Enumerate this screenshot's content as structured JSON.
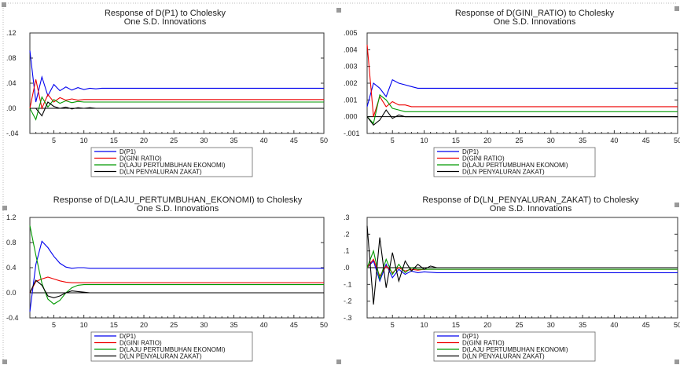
{
  "colors": {
    "p1": "#0000ee",
    "gini": "#ee0000",
    "laju": "#009900",
    "ln": "#000000",
    "frame": "#333333",
    "grid": "#cccccc",
    "handle": "#999999"
  },
  "chart_data": [
    {
      "type": "line",
      "title": "Response of D(P1) to Cholesky",
      "subtitle": "One S.D. Innovations",
      "ylim": [
        -0.04,
        0.12
      ],
      "yticks": [
        ".12",
        ".08",
        ".04",
        ".00",
        "-.04"
      ],
      "ytick_values": [
        0.12,
        0.08,
        0.04,
        0.0,
        -0.04
      ],
      "xlim": [
        1,
        50
      ],
      "xticks": [
        5,
        10,
        15,
        20,
        25,
        30,
        35,
        40,
        45,
        50
      ],
      "legend": [
        "D(P1)",
        "D(GINI RATIO)",
        "D(LAJU PERTUMBUHAN EKONOMI)",
        "D(LN PENYALURAN ZAKAT)"
      ],
      "series": [
        {
          "name": "D(P1)",
          "color_key": "p1",
          "x": [
            1,
            2,
            3,
            4,
            5,
            6,
            7,
            8,
            9,
            10,
            11,
            12,
            13,
            15,
            20,
            30,
            40,
            50
          ],
          "values": [
            0.092,
            0.01,
            0.05,
            0.02,
            0.038,
            0.028,
            0.034,
            0.029,
            0.033,
            0.03,
            0.032,
            0.031,
            0.032,
            0.032,
            0.032,
            0.032,
            0.032,
            0.032
          ]
        },
        {
          "name": "D(GINI RATIO)",
          "color_key": "gini",
          "x": [
            1,
            2,
            3,
            4,
            5,
            6,
            7,
            8,
            9,
            10,
            12,
            15,
            20,
            30,
            40,
            50
          ],
          "values": [
            0.0,
            0.046,
            0.0,
            0.022,
            0.01,
            0.017,
            0.013,
            0.015,
            0.013,
            0.014,
            0.014,
            0.014,
            0.014,
            0.014,
            0.014,
            0.014
          ]
        },
        {
          "name": "D(LAJU PERTUMBUHAN EKONOMI)",
          "color_key": "laju",
          "x": [
            1,
            2,
            3,
            4,
            5,
            6,
            7,
            8,
            9,
            10,
            12,
            15,
            20,
            30,
            40,
            50
          ],
          "values": [
            0.0,
            -0.018,
            0.018,
            0.002,
            0.014,
            0.008,
            0.012,
            0.009,
            0.011,
            0.01,
            0.01,
            0.01,
            0.01,
            0.01,
            0.01,
            0.01
          ]
        },
        {
          "name": "D(LN PENYALURAN ZAKAT)",
          "color_key": "ln",
          "x": [
            1,
            2,
            3,
            4,
            5,
            6,
            7,
            8,
            9,
            10,
            11,
            12,
            13,
            14,
            15,
            16
          ],
          "values": [
            0.0,
            0.0,
            -0.012,
            0.01,
            0.003,
            0.0,
            0.002,
            -0.001,
            0.001,
            0.0,
            0.001,
            0.0,
            0.0,
            0.0,
            0.0,
            0.0
          ]
        }
      ]
    },
    {
      "type": "line",
      "title": "Response of D(GINI_RATIO) to Cholesky",
      "subtitle": "One S.D. Innovations",
      "ylim": [
        -0.001,
        0.005
      ],
      "yticks": [
        ".005",
        ".004",
        ".003",
        ".002",
        ".001",
        ".000",
        "-.001"
      ],
      "ytick_values": [
        0.005,
        0.004,
        0.003,
        0.002,
        0.001,
        0.0,
        -0.001
      ],
      "xlim": [
        1,
        50
      ],
      "xticks": [
        5,
        10,
        15,
        20,
        25,
        30,
        35,
        40,
        45,
        "50"
      ],
      "legend": [
        "D(P1)",
        "D(GINI RATIO)",
        "D(LAJU PERTUMBUHAN EKONOMI)",
        "D(LN PENYALURAN ZAKAT)"
      ],
      "series": [
        {
          "name": "D(P1)",
          "color_key": "p1",
          "x": [
            1,
            2,
            3,
            4,
            5,
            6,
            7,
            8,
            9,
            10,
            12,
            15,
            20,
            30,
            40,
            50
          ],
          "values": [
            0.0006,
            0.002,
            0.0017,
            0.0012,
            0.0022,
            0.002,
            0.0019,
            0.0018,
            0.0017,
            0.0017,
            0.0017,
            0.0017,
            0.0017,
            0.0017,
            0.0017,
            0.0017
          ]
        },
        {
          "name": "D(GINI RATIO)",
          "color_key": "gini",
          "x": [
            1,
            2,
            3,
            4,
            5,
            6,
            7,
            8,
            9,
            10,
            12,
            15,
            20,
            30,
            40,
            50
          ],
          "values": [
            0.0043,
            0.0,
            0.0012,
            0.0006,
            0.0009,
            0.0007,
            0.0007,
            0.0006,
            0.0006,
            0.0006,
            0.0006,
            0.0006,
            0.0006,
            0.0006,
            0.0006,
            0.0006
          ]
        },
        {
          "name": "D(LAJU PERTUMBUHAN EKONOMI)",
          "color_key": "laju",
          "x": [
            1,
            2,
            3,
            4,
            5,
            6,
            7,
            8,
            9,
            10,
            12,
            15,
            20,
            30,
            40,
            50
          ],
          "values": [
            0.0,
            -0.0004,
            0.0013,
            0.001,
            0.0005,
            0.0004,
            0.0003,
            0.0003,
            0.0003,
            0.0003,
            0.0003,
            0.0003,
            0.0003,
            0.0003,
            0.0003,
            0.0003
          ]
        },
        {
          "name": "D(LN PENYALURAN ZAKAT)",
          "color_key": "ln",
          "x": [
            1,
            2,
            3,
            4,
            5,
            6,
            7,
            8,
            9,
            10,
            12,
            15,
            20,
            30,
            40,
            50
          ],
          "values": [
            0.0,
            -0.0005,
            -0.0002,
            0.0004,
            -0.0001,
            0.0001,
            0.0,
            0.0,
            0.0,
            0.0,
            0.0,
            0.0,
            0.0,
            0.0,
            0.0,
            0.0
          ]
        }
      ]
    },
    {
      "type": "line",
      "title": "Response of D(LAJU_PERTUMBUHAN_EKONOMI) to Cholesky",
      "subtitle": "One S.D. Innovations",
      "ylim": [
        -0.4,
        1.2
      ],
      "yticks": [
        "1.2",
        "0.8",
        "0.4",
        "0.0",
        "-0.4"
      ],
      "ytick_values": [
        1.2,
        0.8,
        0.4,
        0.0,
        -0.4
      ],
      "xlim": [
        1,
        50
      ],
      "xticks": [
        5,
        10,
        15,
        20,
        25,
        30,
        35,
        40,
        45,
        50
      ],
      "legend": [
        "D(P1)",
        "D(GINI RATIO)",
        "D(LAJU PERTUMBUHAN EKONOMI)",
        "D(LN PENYALURAN ZAKAT)"
      ],
      "series": [
        {
          "name": "D(P1)",
          "color_key": "p1",
          "x": [
            1,
            2,
            3,
            4,
            5,
            6,
            7,
            8,
            9,
            10,
            11,
            12,
            15,
            20,
            30,
            40,
            50
          ],
          "values": [
            -0.3,
            0.45,
            0.82,
            0.72,
            0.58,
            0.47,
            0.41,
            0.39,
            0.4,
            0.4,
            0.39,
            0.39,
            0.39,
            0.39,
            0.39,
            0.39,
            0.39
          ]
        },
        {
          "name": "D(GINI RATIO)",
          "color_key": "gini",
          "x": [
            1,
            2,
            3,
            4,
            5,
            6,
            7,
            8,
            9,
            10,
            12,
            15,
            20,
            30,
            40,
            50
          ],
          "values": [
            0.0,
            0.18,
            0.22,
            0.25,
            0.22,
            0.19,
            0.17,
            0.16,
            0.16,
            0.16,
            0.16,
            0.16,
            0.16,
            0.16,
            0.16,
            0.16
          ]
        },
        {
          "name": "D(LAJU PERTUMBUHAN EKONOMI)",
          "color_key": "laju",
          "x": [
            1,
            2,
            3,
            4,
            5,
            6,
            7,
            8,
            9,
            10,
            12,
            15,
            20,
            30,
            40,
            50
          ],
          "values": [
            1.07,
            0.6,
            0.15,
            -0.1,
            -0.18,
            -0.12,
            0.0,
            0.08,
            0.12,
            0.13,
            0.13,
            0.13,
            0.13,
            0.13,
            0.13,
            0.13
          ]
        },
        {
          "name": "D(LN PENYALURAN ZAKAT)",
          "color_key": "ln",
          "x": [
            1,
            2,
            3,
            4,
            5,
            6,
            7,
            8,
            9,
            10,
            11,
            12
          ],
          "values": [
            0.0,
            0.2,
            0.12,
            -0.05,
            -0.08,
            -0.05,
            0.0,
            0.03,
            0.02,
            0.01,
            0.0,
            0.0
          ]
        }
      ]
    },
    {
      "type": "line",
      "title": "Response of D(LN_PENYALURAN_ZAKAT) to Cholesky",
      "subtitle": "One S.D. Innovations",
      "ylim": [
        -0.3,
        0.3
      ],
      "yticks": [
        ".3",
        ".2",
        ".1",
        ".0",
        "-.1",
        "-.2",
        "-.3"
      ],
      "ytick_values": [
        0.3,
        0.2,
        0.1,
        0.0,
        -0.1,
        -0.2,
        -0.3
      ],
      "xlim": [
        1,
        50
      ],
      "xticks": [
        5,
        10,
        15,
        20,
        25,
        30,
        35,
        40,
        45,
        "50"
      ],
      "legend": [
        "D(P1)",
        "D(GINI RATIO)",
        "D(LAJU PERTUMBUHAN EKONOMI)",
        "D(LN PENYALURAN ZAKAT)"
      ],
      "series": [
        {
          "name": "D(P1)",
          "color_key": "p1",
          "x": [
            1,
            2,
            3,
            4,
            5,
            6,
            7,
            8,
            9,
            10,
            12,
            15,
            20,
            30,
            40,
            50
          ],
          "values": [
            0.0,
            0.04,
            -0.08,
            0.02,
            -0.06,
            -0.01,
            -0.04,
            -0.02,
            -0.03,
            -0.025,
            -0.03,
            -0.03,
            -0.03,
            -0.03,
            -0.03,
            -0.03
          ]
        },
        {
          "name": "D(GINI RATIO)",
          "color_key": "gini",
          "x": [
            1,
            2,
            3,
            4,
            5,
            6,
            7,
            8,
            9,
            10,
            12,
            15,
            20,
            30,
            40,
            50
          ],
          "values": [
            0.0,
            0.05,
            -0.05,
            0.01,
            -0.03,
            0.0,
            -0.02,
            -0.01,
            -0.015,
            -0.01,
            -0.01,
            -0.01,
            -0.01,
            -0.01,
            -0.01,
            -0.01
          ]
        },
        {
          "name": "D(LAJU PERTUMBUHAN EKONOMI)",
          "color_key": "laju",
          "x": [
            1,
            2,
            3,
            4,
            5,
            6,
            7,
            8,
            9,
            10,
            12,
            15,
            20,
            30,
            40,
            50
          ],
          "values": [
            0.0,
            0.1,
            -0.07,
            0.05,
            -0.04,
            0.02,
            -0.03,
            0.0,
            -0.01,
            -0.01,
            -0.01,
            -0.01,
            -0.01,
            -0.01,
            -0.01,
            -0.01
          ]
        },
        {
          "name": "D(LN PENYALURAN ZAKAT)",
          "color_key": "ln",
          "x": [
            1,
            2,
            3,
            4,
            5,
            6,
            7,
            8,
            9,
            10,
            11,
            12,
            13,
            14,
            15
          ],
          "values": [
            0.25,
            -0.22,
            0.18,
            -0.12,
            0.09,
            -0.08,
            0.04,
            -0.02,
            0.02,
            -0.01,
            0.01,
            0.0,
            0.0,
            0.0,
            0.0
          ]
        }
      ]
    }
  ]
}
